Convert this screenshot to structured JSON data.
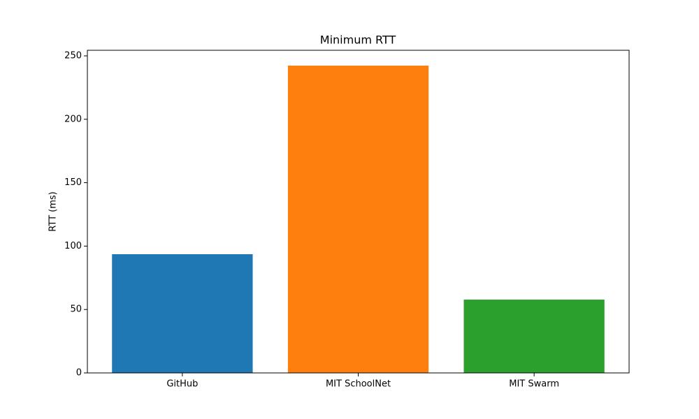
{
  "chart_data": {
    "type": "bar",
    "title": "Minimum RTT",
    "ylabel": "RTT (ms)",
    "categories": [
      "GitHub",
      "MIT SchoolNet",
      "MIT Swarm"
    ],
    "values": [
      93.6,
      242.3,
      57.8
    ],
    "colors": [
      "#1f77b4",
      "#ff7f0e",
      "#2ca02c"
    ],
    "ylim": [
      0,
      254.4
    ],
    "yticks": [
      0,
      50,
      100,
      150,
      200,
      250
    ],
    "grid": false
  }
}
